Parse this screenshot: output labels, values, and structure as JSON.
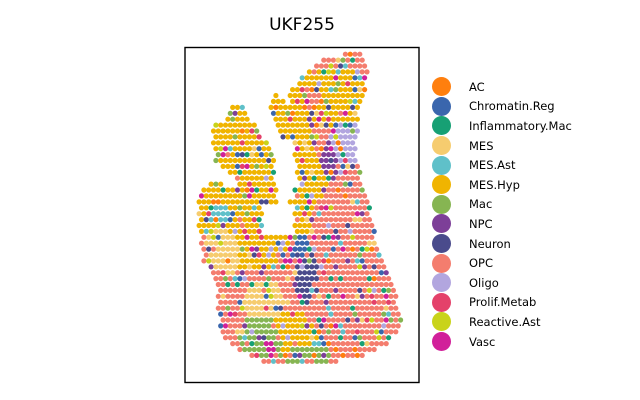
{
  "chart_data": {
    "type": "scatter",
    "title": "UKF255",
    "xlabel": "",
    "ylabel": "",
    "grid": false,
    "legend_position": "right",
    "categories": [
      {
        "name": "AC",
        "color": "#ff7f0e"
      },
      {
        "name": "Chromatin.Reg",
        "color": "#3a66ad"
      },
      {
        "name": "Inflammatory.Mac",
        "color": "#17a074"
      },
      {
        "name": "MES",
        "color": "#f6cc6f"
      },
      {
        "name": "MES.Ast",
        "color": "#5fc0c9"
      },
      {
        "name": "MES.Hyp",
        "color": "#f0b400"
      },
      {
        "name": "Mac",
        "color": "#86b552"
      },
      {
        "name": "NPC",
        "color": "#7d3f98"
      },
      {
        "name": "Neuron",
        "color": "#4a4b8c"
      },
      {
        "name": "OPC",
        "color": "#f47d6e"
      },
      {
        "name": "Oligo",
        "color": "#b2a6df"
      },
      {
        "name": "Prolif.Metab",
        "color": "#e4416a"
      },
      {
        "name": "Reactive.Ast",
        "color": "#c9d31a"
      },
      {
        "name": "Vasc",
        "color": "#d1209a"
      }
    ],
    "regions": [
      {
        "category": "MES.Hyp",
        "cx": 0.3,
        "cy": 0.33,
        "rx": 0.23,
        "ry": 0.15
      },
      {
        "category": "MES.Hyp",
        "cx": 0.28,
        "cy": 0.55,
        "rx": 0.18,
        "ry": 0.12
      },
      {
        "category": "MES.Hyp",
        "cx": 0.66,
        "cy": 0.15,
        "rx": 0.17,
        "ry": 0.09
      },
      {
        "category": "MES.Hyp",
        "cx": 0.23,
        "cy": 0.25,
        "rx": 0.07,
        "ry": 0.07
      },
      {
        "category": "MES.Hyp",
        "cx": 0.52,
        "cy": 0.39,
        "rx": 0.09,
        "ry": 0.08
      },
      {
        "category": "MES.Hyp",
        "cx": 0.46,
        "cy": 0.85,
        "rx": 0.12,
        "ry": 0.06
      },
      {
        "category": "MES",
        "cx": 0.18,
        "cy": 0.59,
        "rx": 0.09,
        "ry": 0.09
      },
      {
        "category": "MES",
        "cx": 0.34,
        "cy": 0.76,
        "rx": 0.09,
        "ry": 0.06
      },
      {
        "category": "OPC",
        "cx": 0.72,
        "cy": 0.62,
        "rx": 0.16,
        "ry": 0.13
      },
      {
        "category": "OPC",
        "cx": 0.68,
        "cy": 0.8,
        "rx": 0.18,
        "ry": 0.1
      },
      {
        "category": "OPC",
        "cx": 0.64,
        "cy": 0.52,
        "rx": 0.1,
        "ry": 0.07
      },
      {
        "category": "OPC",
        "cx": 0.55,
        "cy": 0.15,
        "rx": 0.05,
        "ry": 0.04
      },
      {
        "category": "Mac",
        "cx": 0.34,
        "cy": 0.86,
        "rx": 0.12,
        "ry": 0.06
      },
      {
        "category": "Mac",
        "cx": 0.52,
        "cy": 0.92,
        "rx": 0.1,
        "ry": 0.04
      },
      {
        "category": "Vasc",
        "cx": 0.68,
        "cy": 0.61,
        "rx": 0.05,
        "ry": 0.05
      },
      {
        "category": "Vasc",
        "cx": 0.36,
        "cy": 0.88,
        "rx": 0.05,
        "ry": 0.04
      },
      {
        "category": "Oligo",
        "cx": 0.68,
        "cy": 0.28,
        "rx": 0.07,
        "ry": 0.09
      },
      {
        "category": "Neuron",
        "cx": 0.52,
        "cy": 0.69,
        "rx": 0.05,
        "ry": 0.08
      },
      {
        "category": "Chromatin.Reg",
        "cx": 0.5,
        "cy": 0.6,
        "rx": 0.04,
        "ry": 0.04
      },
      {
        "category": "MES.Ast",
        "cx": 0.16,
        "cy": 0.51,
        "rx": 0.05,
        "ry": 0.04
      },
      {
        "category": "NPC",
        "cx": 0.62,
        "cy": 0.34,
        "rx": 0.05,
        "ry": 0.06
      }
    ]
  }
}
